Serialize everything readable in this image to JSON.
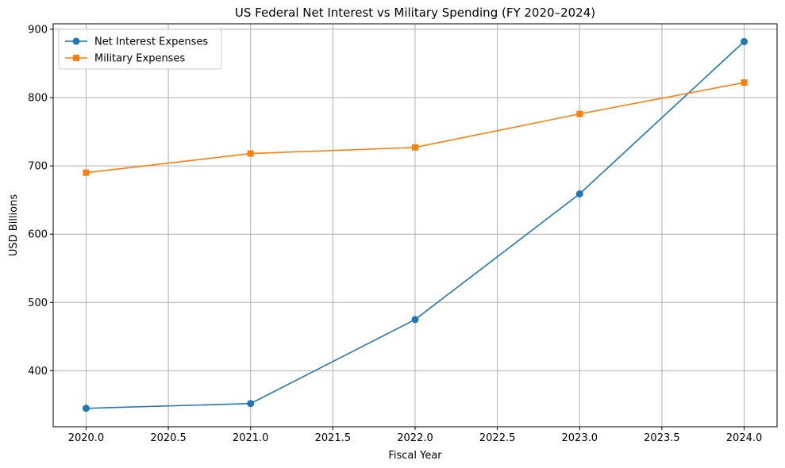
{
  "chart_data": {
    "type": "line",
    "title": "US Federal Net Interest vs Military Spending (FY 2020–2024)",
    "xlabel": "Fiscal Year",
    "ylabel": "USD Billions",
    "x": [
      2020,
      2021,
      2022,
      2023,
      2024
    ],
    "xlim": [
      2019.8,
      2024.2
    ],
    "ylim": [
      318,
      908
    ],
    "xticks": [
      2020.0,
      2020.5,
      2021.0,
      2021.5,
      2022.0,
      2022.5,
      2023.0,
      2023.5,
      2024.0
    ],
    "xtick_labels": [
      "2020.0",
      "2020.5",
      "2021.0",
      "2021.5",
      "2022.0",
      "2022.5",
      "2023.0",
      "2023.5",
      "2024.0"
    ],
    "yticks": [
      400,
      500,
      600,
      700,
      800,
      900
    ],
    "ytick_labels": [
      "400",
      "500",
      "600",
      "700",
      "800",
      "900"
    ],
    "grid": true,
    "legend_position": "top-left",
    "series": [
      {
        "name": "Net Interest Expenses",
        "values": [
          345,
          352,
          475,
          659,
          882
        ],
        "color": "#1f77b4",
        "marker": "circle"
      },
      {
        "name": "Military Expenses",
        "values": [
          690,
          718,
          727,
          776,
          822
        ],
        "color": "#ff7f0e",
        "marker": "square"
      }
    ]
  }
}
